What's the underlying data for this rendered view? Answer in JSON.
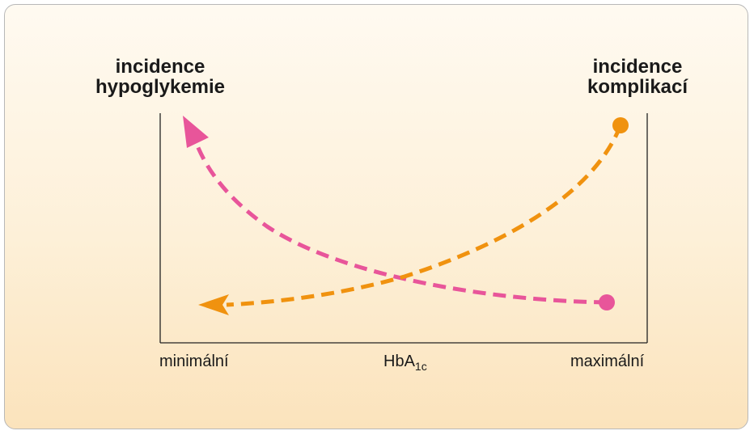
{
  "diagram": {
    "y_title_left_line1": "incidence",
    "y_title_left_line2": "hypoglykemie",
    "y_title_right_line1": "incidence",
    "y_title_right_line2": "komplikací",
    "x_label_min": "minimální",
    "x_label_mid_base": "HbA",
    "x_label_mid_sub": "1c",
    "x_label_max": "maximální"
  },
  "colors": {
    "hypoglycemia_curve": "#e8559a",
    "complications_curve": "#f0920f",
    "axis": "#222222",
    "background_top": "#fffaf1",
    "background_bottom": "#fbe3bc"
  }
}
